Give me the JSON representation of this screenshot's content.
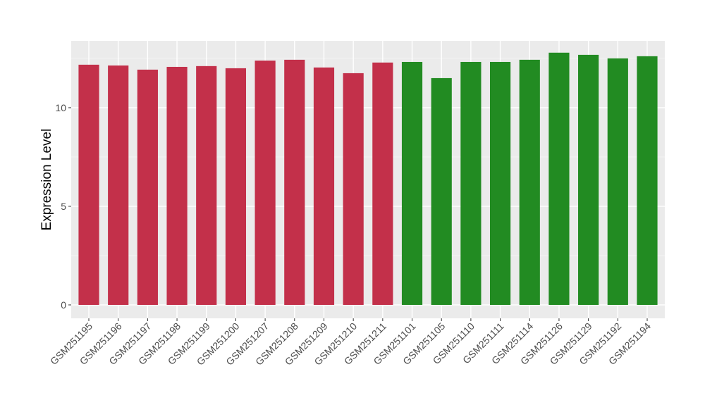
{
  "chart_data": {
    "type": "bar",
    "title": "",
    "xlabel": "",
    "ylabel": "Expression Level",
    "ylim": [
      -0.68,
      13.39
    ],
    "yticks": [
      0,
      5,
      10
    ],
    "grid": true,
    "legend": "none",
    "categories": [
      "GSM251195",
      "GSM251196",
      "GSM251197",
      "GSM251198",
      "GSM251199",
      "GSM251200",
      "GSM251207",
      "GSM251208",
      "GSM251209",
      "GSM251210",
      "GSM251211",
      "GSM251101",
      "GSM251105",
      "GSM251110",
      "GSM251111",
      "GSM251114",
      "GSM251126",
      "GSM251129",
      "GSM251192",
      "GSM251194"
    ],
    "values": [
      12.18,
      12.14,
      11.93,
      12.07,
      12.11,
      12.0,
      12.39,
      12.43,
      12.04,
      11.75,
      12.29,
      12.32,
      11.5,
      12.32,
      12.32,
      12.43,
      12.79,
      12.68,
      12.5,
      12.61
    ],
    "groups": [
      "a",
      "a",
      "a",
      "a",
      "a",
      "a",
      "a",
      "a",
      "a",
      "a",
      "a",
      "b",
      "b",
      "b",
      "b",
      "b",
      "b",
      "b",
      "b",
      "b"
    ],
    "colors": {
      "a": "#C3304A",
      "b": "#228B22"
    }
  }
}
